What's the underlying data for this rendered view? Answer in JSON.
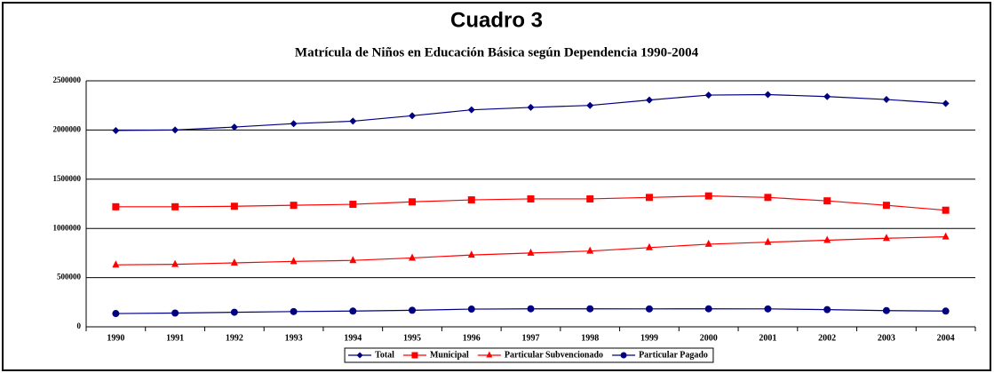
{
  "chart_data": {
    "type": "line",
    "title": "Cuadro 3",
    "subtitle": "Matrícula de Niños en Educación Básica según Dependencia 1990-2004",
    "categories": [
      "1990",
      "1991",
      "1992",
      "1993",
      "1994",
      "1995",
      "1996",
      "1997",
      "1998",
      "1999",
      "2000",
      "2001",
      "2002",
      "2003",
      "2004"
    ],
    "series": [
      {
        "name": "Total",
        "color": "#000080",
        "marker": "diamond",
        "values": [
          1995000,
          2000000,
          2030000,
          2065000,
          2090000,
          2145000,
          2205000,
          2230000,
          2250000,
          2305000,
          2355000,
          2360000,
          2340000,
          2310000,
          2270000
        ]
      },
      {
        "name": "Municipal",
        "color": "#ff0000",
        "marker": "square",
        "values": [
          1220000,
          1220000,
          1225000,
          1235000,
          1245000,
          1270000,
          1290000,
          1300000,
          1300000,
          1315000,
          1330000,
          1315000,
          1280000,
          1235000,
          1185000
        ]
      },
      {
        "name": "Particular Subvencionado",
        "color": "#ff0000",
        "marker": "triangle",
        "values": [
          630000,
          635000,
          650000,
          665000,
          675000,
          700000,
          730000,
          750000,
          770000,
          805000,
          840000,
          860000,
          880000,
          900000,
          915000
        ]
      },
      {
        "name": "Particular Pagado",
        "color": "#000080",
        "marker": "circle",
        "values": [
          135000,
          140000,
          148000,
          155000,
          160000,
          168000,
          180000,
          183000,
          183000,
          182000,
          183000,
          182000,
          175000,
          165000,
          160000
        ]
      }
    ],
    "ylim": [
      0,
      2500000
    ],
    "yticks": [
      0,
      500000,
      1000000,
      1500000,
      2000000,
      2500000
    ],
    "grid": true,
    "legend": "bottom"
  }
}
